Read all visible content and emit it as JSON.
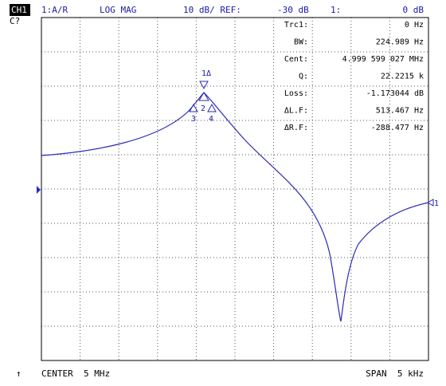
{
  "header": {
    "channel": "CH1",
    "status": "C?",
    "measurement": "1:A/R",
    "format": "LOG MAG",
    "scale": "10 dB/ REF:",
    "reference": "-30 dB",
    "marker_label": "1:",
    "marker_value": "0 dB"
  },
  "readout": [
    {
      "label": "Trc1:",
      "value": "0 Hz"
    },
    {
      "label": "BW:",
      "value": "224.989 Hz"
    },
    {
      "label": "Cent:",
      "value": "4.999 599 027 MHz"
    },
    {
      "label": "Q:",
      "value": "22.2215 k"
    },
    {
      "label": "Loss:",
      "value": "-1.173044 dB"
    },
    {
      "label": "ΔL.F:",
      "value": "513.467 Hz"
    },
    {
      "label": "ΔR.F:",
      "value": "-288.477 Hz"
    }
  ],
  "markers": {
    "m1": "1Δ",
    "m2": "2",
    "m3": "3",
    "m4": "4",
    "ref": "1"
  },
  "footer": {
    "arrow": "↑",
    "center": "CENTER  5 MHz",
    "span": "SPAN  5 kHz"
  }
}
